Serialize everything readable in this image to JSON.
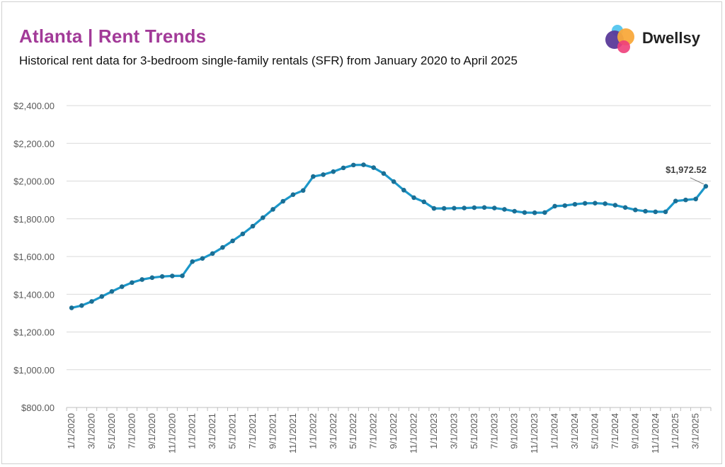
{
  "header": {
    "title": "Atlanta | Rent Trends",
    "subtitle": "Historical rent data for 3-bedroom single-family rentals (SFR) from January 2020 to April 2025"
  },
  "brand": {
    "name": "Dwellsy"
  },
  "colors": {
    "title": "#a23a98",
    "line": "#1b97c9",
    "marker": "#1a6e94",
    "grid": "#d9d9d9",
    "axis_text": "#595959"
  },
  "chart_data": {
    "type": "line",
    "title": "Atlanta | Rent Trends",
    "subtitle": "Historical rent data for 3-bedroom single-family rentals (SFR) from January 2020 to April 2025",
    "xlabel": "",
    "ylabel": "",
    "ylim": [
      800,
      2400
    ],
    "yticks": [
      "$800.00",
      "$1,000.00",
      "$1,200.00",
      "$1,400.00",
      "$1,600.00",
      "$1,800.00",
      "$2,000.00",
      "$2,200.00",
      "$2,400.00"
    ],
    "grid": true,
    "legend": "none",
    "x_tick_labels": [
      "1/1/2020",
      "3/1/2020",
      "5/1/2020",
      "7/1/2020",
      "9/1/2020",
      "11/1/2020",
      "1/1/2021",
      "3/1/2021",
      "5/1/2021",
      "7/1/2021",
      "9/1/2021",
      "11/1/2021",
      "1/1/2022",
      "3/1/2022",
      "5/1/2022",
      "7/1/2022",
      "9/1/2022",
      "11/1/2022",
      "1/1/2023",
      "3/1/2023",
      "5/1/2023",
      "7/1/2023",
      "9/1/2023",
      "11/1/2023",
      "1/1/2024",
      "3/1/2024",
      "5/1/2024",
      "7/1/2024",
      "9/1/2024",
      "11/1/2024",
      "1/1/2025",
      "3/1/2025"
    ],
    "series": [
      {
        "values": [
          1328,
          1340,
          1362,
          1388,
          1415,
          1440,
          1462,
          1478,
          1488,
          1494,
          1497,
          1498,
          1573,
          1590,
          1616,
          1648,
          1683,
          1720,
          1761,
          1806,
          1850,
          1893,
          1928,
          1950,
          2024,
          2034,
          2050,
          2070,
          2085,
          2086,
          2071,
          2040,
          1997,
          1952,
          1912,
          1890,
          1855,
          1855,
          1856,
          1857,
          1859,
          1860,
          1857,
          1850,
          1840,
          1833,
          1832,
          1833,
          1867,
          1870,
          1877,
          1882,
          1883,
          1880,
          1872,
          1860,
          1847,
          1840,
          1837,
          1837,
          1894,
          1900,
          1905,
          1972.52
        ]
      }
    ],
    "annotations": [
      {
        "label": "$1,972.52",
        "value": 1972.52,
        "point": "last"
      }
    ]
  }
}
